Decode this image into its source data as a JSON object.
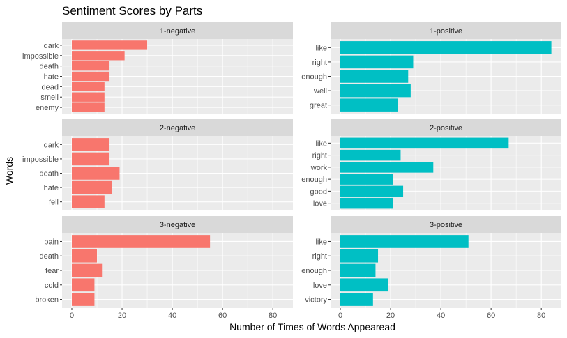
{
  "chart_data": {
    "type": "bar",
    "orientation": "horizontal",
    "title": "Sentiment Scores by Parts",
    "xlabel": "Number of Times of Words Appearead",
    "ylabel": "Words",
    "xlim": [
      0,
      88
    ],
    "x_ticks": [
      0,
      20,
      40,
      60,
      80
    ],
    "grid": true,
    "colors": {
      "negative": "#F8766D",
      "positive": "#00BFC4",
      "panel_bg": "#EBEBEB",
      "strip_bg": "#D9D9D9",
      "grid": "#FFFFFF"
    },
    "panels": [
      {
        "label": "1-negative",
        "sentiment": "negative",
        "categories": [
          "dark",
          "impossible",
          "death",
          "hate",
          "dead",
          "smell",
          "enemy"
        ],
        "values": [
          30,
          21,
          15,
          15,
          13,
          13,
          13
        ]
      },
      {
        "label": "1-positive",
        "sentiment": "positive",
        "categories": [
          "like",
          "right",
          "enough",
          "well",
          "great"
        ],
        "values": [
          84,
          29,
          27,
          28,
          23
        ]
      },
      {
        "label": "2-negative",
        "sentiment": "negative",
        "categories": [
          "dark",
          "impossible",
          "death",
          "hate",
          "fell"
        ],
        "values": [
          15,
          15,
          19,
          16,
          13
        ]
      },
      {
        "label": "2-positive",
        "sentiment": "positive",
        "categories": [
          "like",
          "right",
          "work",
          "enough",
          "good",
          "love"
        ],
        "values": [
          67,
          24,
          37,
          21,
          25,
          21
        ]
      },
      {
        "label": "3-negative",
        "sentiment": "negative",
        "categories": [
          "pain",
          "death",
          "fear",
          "cold",
          "broken"
        ],
        "values": [
          55,
          10,
          12,
          9,
          9
        ]
      },
      {
        "label": "3-positive",
        "sentiment": "positive",
        "categories": [
          "like",
          "right",
          "enough",
          "love",
          "victory"
        ],
        "values": [
          51,
          15,
          14,
          19,
          13
        ]
      }
    ]
  }
}
